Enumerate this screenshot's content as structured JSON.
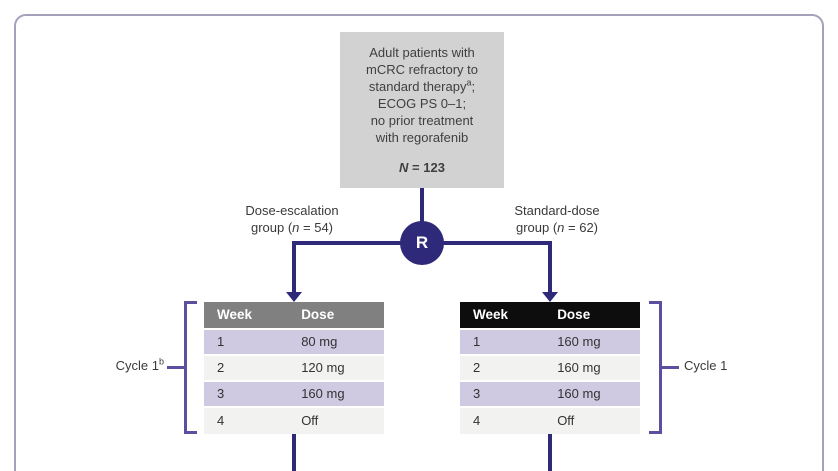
{
  "figure": {
    "type": "clinical-trial-randomization-diagram"
  },
  "colors": {
    "line_indigo": "#2f2979",
    "bracket_purple": "#5b4fa0",
    "patient_box_bg": "#d2d2d2",
    "header_gray": "#808080",
    "header_black": "#0d0d0d",
    "row_lavender": "#cfc9e2",
    "row_light": "#f2f2f1",
    "frame_border": "#a4a1bb"
  },
  "patient_box": {
    "line1": "Adult patients with",
    "line2": "mCRC refractory to",
    "line3_pre": "standard therapy",
    "line3_sup": "a",
    "line3_post": ";",
    "line4": "ECOG PS 0–1;",
    "line5": "no prior treatment",
    "line6": "with regorafenib",
    "n_italic": "N",
    "n_rest": " = 123"
  },
  "randomization": {
    "label": "R"
  },
  "branch_left": {
    "name": "Dose-escalation",
    "group_pre": "group (",
    "n_italic": "n",
    "group_post": " = 54)"
  },
  "branch_right": {
    "name": "Standard-dose",
    "group_pre": "group (",
    "n_italic": "n",
    "group_post": " = 62)"
  },
  "tables": [
    {
      "name": "dose-escalation-schedule",
      "header": {
        "week": "Week",
        "dose": "Dose"
      },
      "rows": [
        {
          "week": "1",
          "dose": "80 mg"
        },
        {
          "week": "2",
          "dose": "120 mg"
        },
        {
          "week": "3",
          "dose": "160 mg"
        },
        {
          "week": "4",
          "dose": "Off"
        }
      ]
    },
    {
      "name": "standard-dose-schedule",
      "header": {
        "week": "Week",
        "dose": "Dose"
      },
      "rows": [
        {
          "week": "1",
          "dose": "160 mg"
        },
        {
          "week": "2",
          "dose": "160 mg"
        },
        {
          "week": "3",
          "dose": "160 mg"
        },
        {
          "week": "4",
          "dose": "Off"
        }
      ]
    }
  ],
  "cycle_left": {
    "text": "Cycle 1",
    "sup": "b"
  },
  "cycle_right": {
    "text": "Cycle 1"
  }
}
